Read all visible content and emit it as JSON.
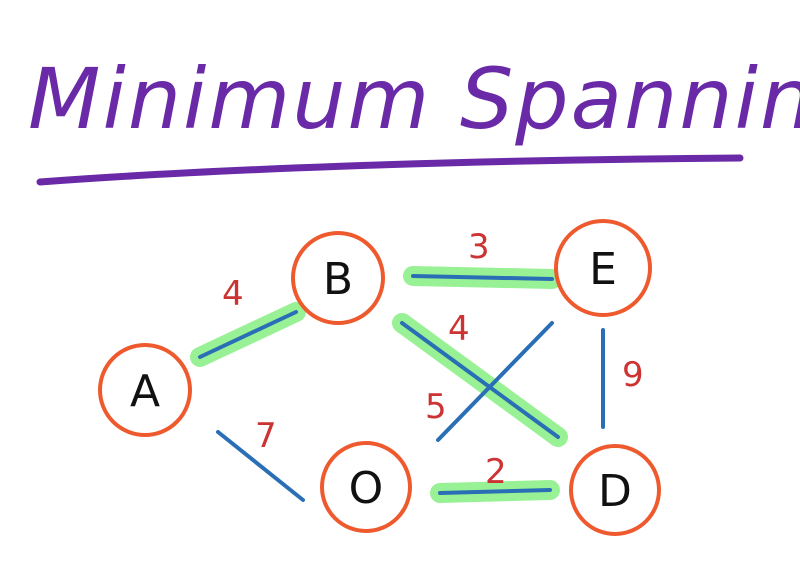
{
  "title": "Minimum Spanning Tree",
  "colors": {
    "title": "#6a2aa8",
    "node_border": "#ee5a2e",
    "edge": "#2a6fb5",
    "highlight": "#8ef08a",
    "weight": "#cc3333"
  },
  "nodes": [
    {
      "id": "A",
      "label": "A"
    },
    {
      "id": "B",
      "label": "B"
    },
    {
      "id": "E",
      "label": "E"
    },
    {
      "id": "O",
      "label": "O"
    },
    {
      "id": "D",
      "label": "D"
    }
  ],
  "edges": [
    {
      "from": "A",
      "to": "B",
      "weight": "4",
      "in_tree": true
    },
    {
      "from": "B",
      "to": "E",
      "weight": "3",
      "in_tree": true
    },
    {
      "from": "B",
      "to": "D",
      "weight": "4",
      "in_tree": true
    },
    {
      "from": "O",
      "to": "E",
      "weight": "5",
      "in_tree": false
    },
    {
      "from": "E",
      "to": "D",
      "weight": "9",
      "in_tree": false
    },
    {
      "from": "A",
      "to": "O",
      "weight": "7",
      "in_tree": false
    },
    {
      "from": "O",
      "to": "D",
      "weight": "2",
      "in_tree": true
    }
  ]
}
